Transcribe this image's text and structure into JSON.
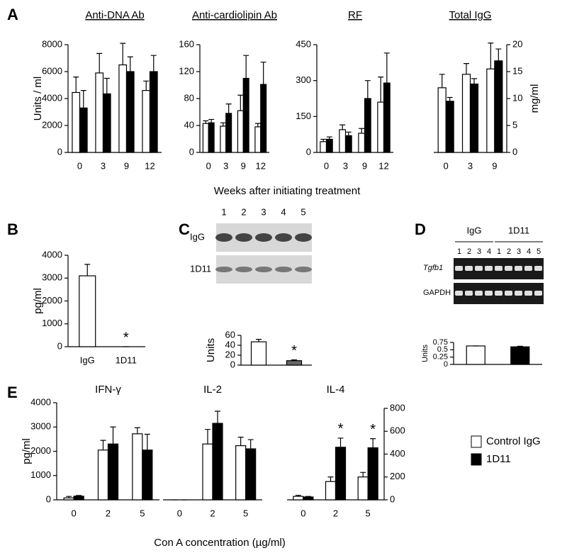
{
  "panels": [
    "A",
    "B",
    "C",
    "D",
    "E"
  ],
  "xlabel_A": "Weeks after initiating treatment",
  "xlabel_E": "Con A concentration (µg/ml)",
  "legend": {
    "series": [
      {
        "name": "Control IgG",
        "color": "#ffffff"
      },
      {
        "name": "1D11",
        "color": "#000000"
      }
    ]
  },
  "blot_C": {
    "lanes": [
      "1",
      "2",
      "3",
      "4",
      "5"
    ],
    "rows": [
      "IgG",
      "1D11"
    ]
  },
  "blot_D": {
    "groups": [
      {
        "name": "IgG",
        "lanes": [
          "1",
          "2",
          "3",
          "4"
        ]
      },
      {
        "name": "1D11",
        "lanes": [
          "1",
          "2",
          "3",
          "4",
          "5"
        ]
      }
    ],
    "rows": [
      "Tgfb1",
      "GAPDH"
    ]
  },
  "chart_data": [
    {
      "type": "bar",
      "title": "Anti-DNA Ab",
      "categories": [
        "0",
        "3",
        "9",
        "12"
      ],
      "ylabel": "Units / ml",
      "yaxis": "left",
      "series": [
        {
          "color": "#ffffff",
          "values": [
            4450,
            5900,
            6500,
            4600
          ],
          "errors": [
            1150,
            1450,
            1600,
            700
          ]
        },
        {
          "color": "#000000",
          "values": [
            3300,
            4350,
            6000,
            6000
          ],
          "errors": [
            1300,
            1150,
            1100,
            1200
          ]
        }
      ],
      "ylim": [
        0,
        8000
      ],
      "yticks": [
        0,
        2000,
        4000,
        6000,
        8000
      ]
    },
    {
      "type": "bar",
      "title": "Anti-cardiolipin Ab",
      "categories": [
        "0",
        "3",
        "9",
        "12"
      ],
      "yaxis": "left",
      "series": [
        {
          "color": "#ffffff",
          "values": [
            43,
            39,
            62,
            38
          ],
          "errors": [
            4,
            5,
            23,
            5
          ]
        },
        {
          "color": "#000000",
          "values": [
            44,
            58,
            110,
            101
          ],
          "errors": [
            5,
            14,
            34,
            33
          ]
        }
      ],
      "ylim": [
        0,
        160
      ],
      "yticks": [
        0,
        40,
        80,
        120,
        160
      ]
    },
    {
      "type": "bar",
      "title": "RF",
      "categories": [
        "0",
        "3",
        "9",
        "12"
      ],
      "yaxis": "left",
      "series": [
        {
          "color": "#ffffff",
          "values": [
            45,
            95,
            80,
            210
          ],
          "errors": [
            10,
            20,
            20,
            105
          ]
        },
        {
          "color": "#000000",
          "values": [
            55,
            70,
            225,
            290
          ],
          "errors": [
            10,
            15,
            75,
            125
          ]
        }
      ],
      "ylim": [
        0,
        450
      ],
      "yticks": [
        0,
        150,
        300,
        450
      ]
    },
    {
      "type": "bar",
      "title": "Total IgG",
      "categories": [
        "0",
        "3",
        "9"
      ],
      "ylabel": "mg/ml",
      "yaxis": "right",
      "series": [
        {
          "color": "#ffffff",
          "values": [
            12,
            14.5,
            15.5
          ],
          "errors": [
            2.5,
            2,
            4.8
          ]
        },
        {
          "color": "#000000",
          "values": [
            9.5,
            12.7,
            17
          ],
          "errors": [
            0.7,
            1,
            2.2
          ]
        }
      ],
      "ylim": [
        0,
        20
      ],
      "yticks": [
        0,
        5,
        10,
        15,
        20
      ]
    },
    {
      "type": "bar",
      "categories": [
        "IgG",
        "1D11"
      ],
      "ylabel": "pg/ml",
      "yaxis": "left",
      "series": [
        {
          "color": "#ffffff",
          "values": [
            3100,
            0
          ],
          "errors": [
            500,
            0
          ]
        }
      ],
      "stars": [
        {
          "label": "*",
          "index": 1,
          "series": 0
        }
      ],
      "ylim": [
        0,
        4000
      ],
      "yticks": [
        0,
        1000,
        2000,
        3000,
        4000
      ]
    },
    {
      "type": "bar",
      "categories": [
        null,
        null
      ],
      "ylabel": "Units",
      "yaxis": "left",
      "series": [
        {
          "colors": [
            "#ffffff",
            "#666666"
          ],
          "values": [
            47,
            9
          ],
          "errors": [
            5,
            1.5
          ]
        }
      ],
      "stars": [
        {
          "label": "*",
          "index": 1,
          "series": 0
        }
      ],
      "ylim": [
        0,
        60
      ],
      "yticks": [
        0,
        20,
        40,
        60
      ]
    },
    {
      "type": "bar",
      "categories": [
        null,
        null
      ],
      "ylabel": "Units",
      "yaxis": "left",
      "series": [
        {
          "colors": [
            "#ffffff",
            "#000000"
          ],
          "values": [
            0.63,
            0.6
          ],
          "errors": [
            0,
            0.02
          ]
        }
      ],
      "ylim": [
        0,
        0.75
      ],
      "yticks": [
        0,
        0.25,
        0.5,
        0.75
      ]
    },
    {
      "type": "bar",
      "title": "IFN-γ",
      "categories": [
        "0",
        "2",
        "5"
      ],
      "ylabel": "pg/ml",
      "yaxis": "left",
      "series": [
        {
          "color": "#ffffff",
          "values": [
            80,
            2050,
            2720
          ],
          "errors": [
            60,
            400,
            250
          ]
        },
        {
          "color": "#000000",
          "values": [
            150,
            2300,
            2050
          ],
          "errors": [
            30,
            700,
            650
          ]
        }
      ],
      "ylim": [
        0,
        4000
      ],
      "yticks": [
        0,
        1000,
        2000,
        3000,
        4000
      ]
    },
    {
      "type": "bar",
      "title": "IL-2",
      "categories": [
        "0",
        "2",
        "5"
      ],
      "yaxis": "none",
      "series": [
        {
          "color": "#ffffff",
          "values": [
            0,
            2300,
            2230
          ],
          "errors": [
            0,
            600,
            350
          ]
        },
        {
          "color": "#000000",
          "values": [
            0,
            3150,
            2100
          ],
          "errors": [
            0,
            500,
            380
          ]
        }
      ],
      "ylim": [
        0,
        4000
      ]
    },
    {
      "type": "bar",
      "title": "IL-4",
      "categories": [
        "0",
        "2",
        "5"
      ],
      "yaxis": "right",
      "series": [
        {
          "color": "#ffffff",
          "values": [
            30,
            160,
            200
          ],
          "errors": [
            10,
            40,
            40
          ]
        },
        {
          "color": "#000000",
          "values": [
            25,
            460,
            455
          ],
          "errors": [
            5,
            80,
            80
          ]
        }
      ],
      "stars": [
        {
          "label": "*",
          "index": 1,
          "series": 1
        },
        {
          "label": "*",
          "index": 2,
          "series": 1
        }
      ],
      "ylim": [
        0,
        800
      ],
      "yticks": [
        0,
        200,
        400,
        600,
        800
      ]
    }
  ]
}
